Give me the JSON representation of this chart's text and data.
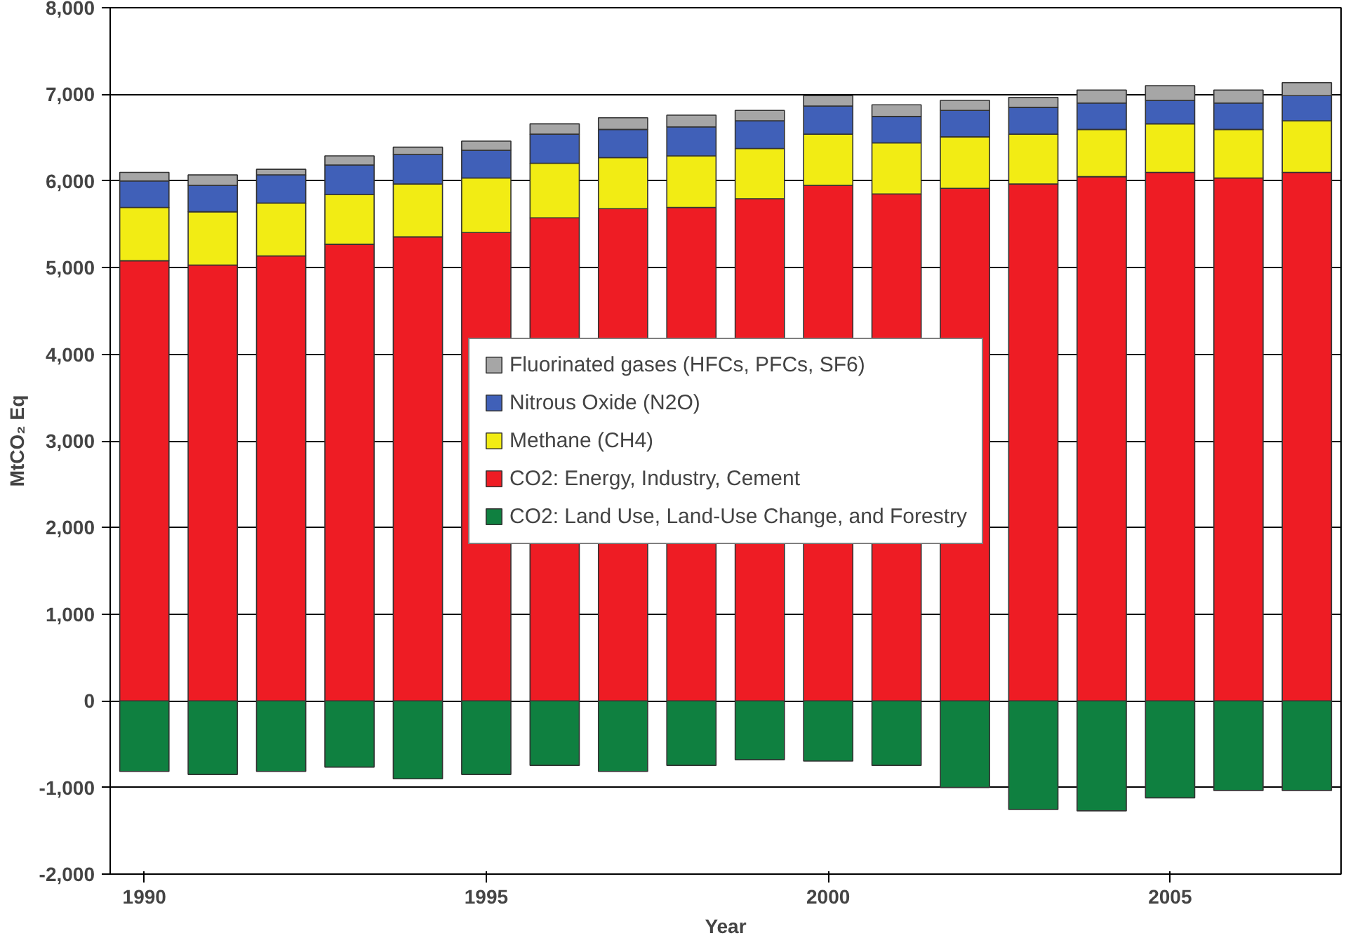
{
  "chart_data": {
    "type": "bar",
    "stacked": true,
    "xlabel": "Year",
    "ylabel": "MtCO₂ Eq",
    "categories": [
      "1990",
      null,
      null,
      null,
      null,
      "1995",
      null,
      null,
      null,
      null,
      "2000",
      null,
      null,
      null,
      null,
      "2005",
      null,
      null
    ],
    "series": [
      {
        "name": "CO2: Land Use, Land-Use Change, and Forestry",
        "color": "#0f8040",
        "values": [
          -815,
          -850,
          -815,
          -765,
          -900,
          -850,
          -745,
          -815,
          -745,
          -680,
          -695,
          -745,
          -1000,
          -1255,
          -1270,
          -1120,
          -1035,
          -1035
        ]
      },
      {
        "name": "CO2: Energy, Industry, Cement",
        "color": "#ee1c24",
        "values": [
          5080,
          5030,
          5135,
          5270,
          5355,
          5405,
          5575,
          5680,
          5695,
          5795,
          5950,
          5850,
          5915,
          5965,
          6050,
          6100,
          6035,
          6100
        ]
      },
      {
        "name": "Methane (CH4)",
        "color": "#f2ec14",
        "values": [
          615,
          615,
          610,
          575,
          610,
          630,
          630,
          590,
          595,
          580,
          590,
          590,
          595,
          575,
          545,
          560,
          560,
          595
        ]
      },
      {
        "name": "Nitrous Oxide (N2O)",
        "color": "#4060b8",
        "values": [
          305,
          305,
          325,
          340,
          340,
          320,
          335,
          325,
          335,
          320,
          325,
          305,
          305,
          310,
          305,
          270,
          305,
          290
        ]
      },
      {
        "name": "Fluorinated gases (HFCs, PFCs, SF6)",
        "color": "#a6a6a6",
        "values": [
          100,
          120,
          65,
          105,
          85,
          105,
          120,
          135,
          135,
          120,
          120,
          135,
          115,
          115,
          150,
          170,
          150,
          150
        ]
      }
    ],
    "ylim": [
      -2000,
      8000
    ],
    "yticks": [
      {
        "value": -2000,
        "label": "-2,000"
      },
      {
        "value": -1000,
        "label": "-1,000"
      },
      0,
      {
        "value": 1000,
        "label": "1,000"
      },
      {
        "value": 2000,
        "label": "2,000"
      },
      {
        "value": 3000,
        "label": "3,000"
      },
      {
        "value": 4000,
        "label": "4,000"
      },
      {
        "value": 5000,
        "label": "5,000"
      },
      {
        "value": 6000,
        "label": "6,000"
      },
      {
        "value": 7000,
        "label": "7,000"
      },
      {
        "value": 8000,
        "label": "8,000"
      }
    ],
    "grid": "y",
    "legend": "center"
  }
}
